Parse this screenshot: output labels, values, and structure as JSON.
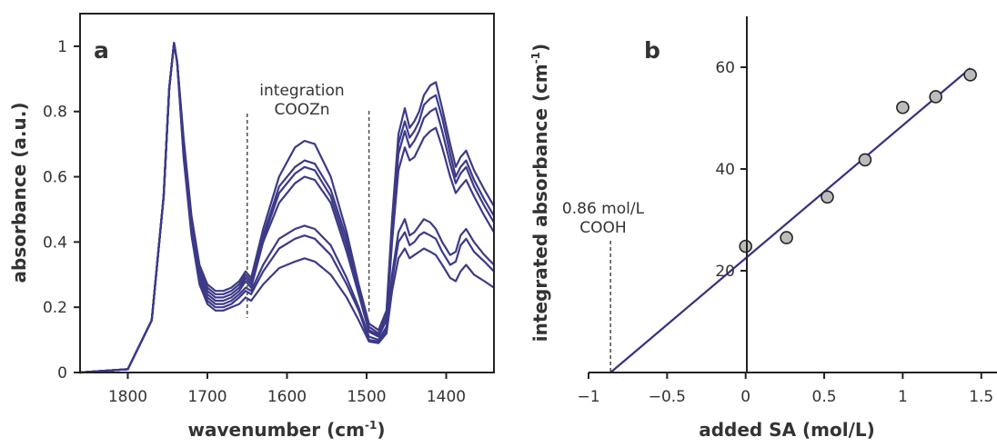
{
  "chart_data": [
    {
      "panel_label": "a",
      "type": "line",
      "xlabel": "wavenumber (cm",
      "xlabel_sup": "-1",
      "xlabel_close": ")",
      "ylabel": "absorbance (a.u.)",
      "xlim": [
        1860,
        1340
      ],
      "ylim": [
        0,
        1.1
      ],
      "xticks": [
        {
          "v": 1800,
          "t": "1800"
        },
        {
          "v": 1700,
          "t": "1700"
        },
        {
          "v": 1600,
          "t": "1600"
        },
        {
          "v": 1500,
          "t": "1500"
        },
        {
          "v": 1400,
          "t": "1400"
        }
      ],
      "yticks": [
        {
          "v": 0,
          "t": "0"
        },
        {
          "v": 0.2,
          "t": "0.2"
        },
        {
          "v": 0.4,
          "t": "0.4"
        },
        {
          "v": 0.6,
          "t": "0.6"
        },
        {
          "v": 0.8,
          "t": "0.8"
        },
        {
          "v": 1,
          "t": "1"
        }
      ],
      "annotation": {
        "line1": "integration",
        "line2": "COOZn"
      },
      "integration_bounds": [
        1650,
        1497
      ],
      "series": [
        {
          "x": [
            1860,
            1800,
            1770,
            1755,
            1748,
            1742,
            1738,
            1730,
            1720,
            1710,
            1700,
            1690,
            1680,
            1670,
            1660,
            1652,
            1645,
            1630,
            1610,
            1590,
            1578,
            1565,
            1545,
            1525,
            1510,
            1497,
            1485,
            1475,
            1468,
            1460,
            1452,
            1446,
            1440,
            1434,
            1428,
            1420,
            1413,
            1405,
            1395,
            1388,
            1382,
            1375,
            1365,
            1352,
            1340
          ],
          "y": [
            0,
            0.01,
            0.16,
            0.54,
            0.87,
            1.01,
            0.95,
            0.72,
            0.48,
            0.33,
            0.27,
            0.25,
            0.25,
            0.26,
            0.28,
            0.31,
            0.29,
            0.44,
            0.6,
            0.69,
            0.71,
            0.7,
            0.6,
            0.43,
            0.27,
            0.15,
            0.13,
            0.19,
            0.47,
            0.73,
            0.81,
            0.75,
            0.77,
            0.8,
            0.85,
            0.88,
            0.89,
            0.81,
            0.7,
            0.63,
            0.66,
            0.68,
            0.62,
            0.56,
            0.51
          ]
        },
        {
          "x": [
            1860,
            1800,
            1770,
            1755,
            1748,
            1742,
            1738,
            1730,
            1720,
            1710,
            1700,
            1690,
            1680,
            1670,
            1660,
            1652,
            1645,
            1630,
            1610,
            1590,
            1578,
            1565,
            1545,
            1525,
            1510,
            1497,
            1485,
            1475,
            1468,
            1460,
            1452,
            1446,
            1440,
            1434,
            1428,
            1420,
            1413,
            1405,
            1395,
            1388,
            1382,
            1375,
            1365,
            1352,
            1340
          ],
          "y": [
            0,
            0.01,
            0.16,
            0.54,
            0.87,
            1.01,
            0.95,
            0.71,
            0.47,
            0.32,
            0.26,
            0.24,
            0.24,
            0.25,
            0.27,
            0.3,
            0.28,
            0.42,
            0.57,
            0.63,
            0.65,
            0.64,
            0.56,
            0.41,
            0.26,
            0.14,
            0.12,
            0.18,
            0.45,
            0.7,
            0.77,
            0.72,
            0.74,
            0.77,
            0.82,
            0.84,
            0.85,
            0.78,
            0.67,
            0.6,
            0.63,
            0.65,
            0.59,
            0.53,
            0.48
          ]
        },
        {
          "x": [
            1860,
            1800,
            1770,
            1755,
            1748,
            1742,
            1738,
            1730,
            1720,
            1710,
            1700,
            1690,
            1680,
            1670,
            1660,
            1652,
            1645,
            1630,
            1610,
            1590,
            1578,
            1565,
            1545,
            1525,
            1510,
            1497,
            1485,
            1475,
            1468,
            1460,
            1452,
            1446,
            1440,
            1434,
            1428,
            1420,
            1413,
            1405,
            1395,
            1388,
            1382,
            1375,
            1365,
            1352,
            1340
          ],
          "y": [
            0,
            0.01,
            0.16,
            0.54,
            0.87,
            1.01,
            0.95,
            0.7,
            0.46,
            0.31,
            0.25,
            0.23,
            0.23,
            0.24,
            0.26,
            0.29,
            0.27,
            0.41,
            0.55,
            0.61,
            0.63,
            0.62,
            0.54,
            0.39,
            0.25,
            0.13,
            0.115,
            0.17,
            0.43,
            0.67,
            0.74,
            0.69,
            0.71,
            0.74,
            0.78,
            0.8,
            0.81,
            0.74,
            0.64,
            0.58,
            0.61,
            0.63,
            0.57,
            0.51,
            0.46
          ]
        },
        {
          "x": [
            1860,
            1800,
            1770,
            1755,
            1748,
            1742,
            1738,
            1730,
            1720,
            1710,
            1700,
            1690,
            1680,
            1670,
            1660,
            1652,
            1645,
            1630,
            1610,
            1590,
            1578,
            1565,
            1545,
            1525,
            1510,
            1497,
            1485,
            1475,
            1468,
            1460,
            1452,
            1446,
            1440,
            1434,
            1428,
            1420,
            1413,
            1405,
            1395,
            1388,
            1382,
            1375,
            1365,
            1352,
            1340
          ],
          "y": [
            0,
            0.01,
            0.16,
            0.54,
            0.87,
            1.01,
            0.95,
            0.69,
            0.45,
            0.3,
            0.24,
            0.22,
            0.22,
            0.23,
            0.25,
            0.28,
            0.26,
            0.4,
            0.52,
            0.58,
            0.6,
            0.59,
            0.52,
            0.37,
            0.24,
            0.125,
            0.11,
            0.16,
            0.4,
            0.62,
            0.69,
            0.65,
            0.66,
            0.69,
            0.72,
            0.74,
            0.75,
            0.69,
            0.6,
            0.55,
            0.57,
            0.59,
            0.54,
            0.48,
            0.43
          ]
        },
        {
          "x": [
            1860,
            1800,
            1770,
            1755,
            1748,
            1742,
            1738,
            1730,
            1720,
            1710,
            1700,
            1690,
            1680,
            1670,
            1660,
            1652,
            1645,
            1630,
            1610,
            1590,
            1578,
            1565,
            1545,
            1525,
            1510,
            1497,
            1485,
            1475,
            1468,
            1460,
            1452,
            1446,
            1440,
            1434,
            1428,
            1420,
            1413,
            1405,
            1395,
            1388,
            1382,
            1375,
            1365,
            1352,
            1340
          ],
          "y": [
            0,
            0.01,
            0.16,
            0.54,
            0.87,
            1.01,
            0.95,
            0.68,
            0.44,
            0.29,
            0.23,
            0.21,
            0.21,
            0.22,
            0.24,
            0.26,
            0.25,
            0.33,
            0.41,
            0.44,
            0.45,
            0.44,
            0.39,
            0.29,
            0.2,
            0.11,
            0.1,
            0.14,
            0.3,
            0.43,
            0.47,
            0.42,
            0.43,
            0.45,
            0.47,
            0.46,
            0.44,
            0.4,
            0.36,
            0.37,
            0.42,
            0.44,
            0.4,
            0.36,
            0.33
          ]
        },
        {
          "x": [
            1860,
            1800,
            1770,
            1755,
            1748,
            1742,
            1738,
            1730,
            1720,
            1710,
            1700,
            1690,
            1680,
            1670,
            1660,
            1652,
            1645,
            1630,
            1610,
            1590,
            1578,
            1565,
            1545,
            1525,
            1510,
            1497,
            1485,
            1475,
            1468,
            1460,
            1452,
            1446,
            1440,
            1434,
            1428,
            1420,
            1413,
            1405,
            1395,
            1388,
            1382,
            1375,
            1365,
            1352,
            1340
          ],
          "y": [
            0,
            0.01,
            0.16,
            0.54,
            0.87,
            1.01,
            0.95,
            0.67,
            0.43,
            0.28,
            0.22,
            0.2,
            0.2,
            0.21,
            0.23,
            0.25,
            0.24,
            0.31,
            0.38,
            0.41,
            0.42,
            0.41,
            0.36,
            0.27,
            0.19,
            0.1,
            0.095,
            0.13,
            0.28,
            0.4,
            0.43,
            0.39,
            0.4,
            0.42,
            0.43,
            0.42,
            0.41,
            0.37,
            0.33,
            0.34,
            0.39,
            0.41,
            0.37,
            0.34,
            0.31
          ]
        },
        {
          "x": [
            1860,
            1800,
            1770,
            1755,
            1748,
            1742,
            1738,
            1730,
            1720,
            1710,
            1700,
            1690,
            1680,
            1670,
            1660,
            1652,
            1645,
            1630,
            1610,
            1590,
            1578,
            1565,
            1545,
            1525,
            1510,
            1497,
            1485,
            1475,
            1468,
            1460,
            1452,
            1446,
            1440,
            1434,
            1428,
            1420,
            1413,
            1405,
            1395,
            1388,
            1382,
            1375,
            1365,
            1352,
            1340
          ],
          "y": [
            0,
            0.01,
            0.16,
            0.54,
            0.87,
            1.01,
            0.95,
            0.66,
            0.42,
            0.27,
            0.21,
            0.19,
            0.19,
            0.2,
            0.21,
            0.23,
            0.22,
            0.27,
            0.32,
            0.34,
            0.35,
            0.34,
            0.3,
            0.23,
            0.16,
            0.095,
            0.09,
            0.12,
            0.25,
            0.35,
            0.38,
            0.35,
            0.36,
            0.37,
            0.38,
            0.37,
            0.36,
            0.33,
            0.29,
            0.28,
            0.31,
            0.33,
            0.3,
            0.28,
            0.26
          ]
        }
      ]
    },
    {
      "panel_label": "b",
      "type": "scatter",
      "xlabel": "added SA (mol/L)",
      "ylabel": "integrated absorbance (cm",
      "ylabel_sup": "-1",
      "ylabel_close": ")",
      "xlim": [
        -1,
        1.6
      ],
      "ylim": [
        0,
        70
      ],
      "xticks": [
        {
          "v": -1,
          "t": "−1"
        },
        {
          "v": -0.5,
          "t": "−0.5"
        },
        {
          "v": 0,
          "t": "0"
        },
        {
          "v": 0.5,
          "t": "0.5"
        },
        {
          "v": 1,
          "t": "1"
        },
        {
          "v": 1.5,
          "t": "1.5"
        }
      ],
      "yticks": [
        {
          "v": 20,
          "t": "20"
        },
        {
          "v": 40,
          "t": "40"
        },
        {
          "v": 60,
          "t": "60"
        }
      ],
      "points": {
        "x": [
          0,
          0.26,
          0.52,
          0.76,
          1.0,
          1.21,
          1.43
        ],
        "y": [
          24.8,
          26.5,
          34.5,
          41.8,
          52.1,
          54.2,
          58.5
        ]
      },
      "fit": {
        "x": [
          -0.86,
          1.43
        ],
        "y": [
          0,
          59.8
        ]
      },
      "intercept_marker": {
        "x": -0.86,
        "label_line1": "0.86 mol/L",
        "label_line2": "COOH"
      }
    }
  ]
}
